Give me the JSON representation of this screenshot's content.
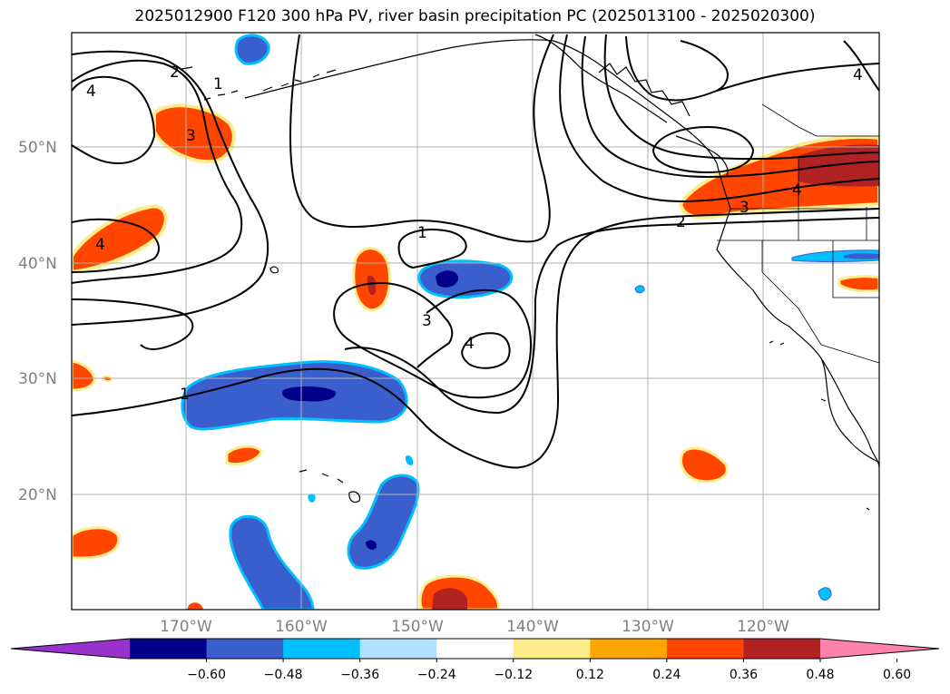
{
  "title": "2025012900 F120 300 hPa PV, river basin precipitation PC (2025013100 - 2025020300)",
  "map": {
    "lat_labels": [
      {
        "label": "50°N",
        "lat": 50
      },
      {
        "label": "40°N",
        "lat": 40
      },
      {
        "label": "30°N",
        "lat": 30
      },
      {
        "label": "20°N",
        "lat": 20
      }
    ],
    "lon_labels": [
      {
        "label": "170°W",
        "lon": -170
      },
      {
        "label": "160°W",
        "lon": -160
      },
      {
        "label": "150°W",
        "lon": -150
      },
      {
        "label": "140°W",
        "lon": -140
      },
      {
        "label": "130°W",
        "lon": -130
      },
      {
        "label": "120°W",
        "lon": -120
      }
    ],
    "contour_labels": [
      "1",
      "2",
      "3",
      "4"
    ]
  },
  "colorbar": {
    "ticks": [
      "−0.60",
      "−0.48",
      "−0.36",
      "−0.24",
      "−0.12",
      "0.12",
      "0.24",
      "0.36",
      "0.48",
      "0.60"
    ],
    "colors": [
      "#9932cc",
      "#00008b",
      "#3a5fcd",
      "#00bfff",
      "#b0e2ff",
      "#ffffff",
      "#ffec8b",
      "#ffa500",
      "#ff4500",
      "#b22222",
      "#ff82ab"
    ]
  },
  "colors": {
    "grid": "#b0b0b0",
    "contour": "#000000",
    "positive_strong": "#b22222",
    "positive": "#ff4500",
    "positive_edge": "#ffa500",
    "positive_fringe": "#ffec8b",
    "negative_strong": "#00008b",
    "negative": "#3a5fcd",
    "negative_edge": "#00bfff"
  }
}
